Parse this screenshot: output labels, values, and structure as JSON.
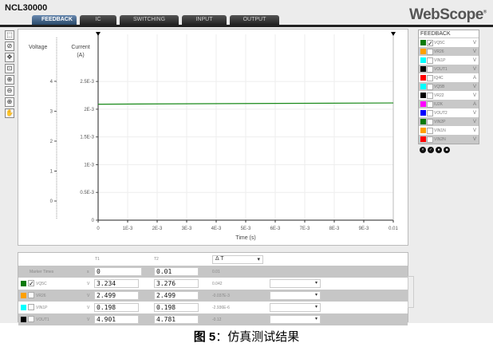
{
  "app": {
    "title": "NCL30000",
    "logo": "WebScope",
    "logo_mark": "®"
  },
  "tabs": [
    {
      "label": "FEEDBACK",
      "active": true
    },
    {
      "label": "IC"
    },
    {
      "label": "SWITCHING"
    },
    {
      "label": "INPUT"
    },
    {
      "label": "OUTPUT"
    }
  ],
  "tools": [
    "select-icon",
    "cursor-icon",
    "pan-icon",
    "measure-icon",
    "zoom-box-icon",
    "zoom-out-icon",
    "zoom-in-icon",
    "hand-icon"
  ],
  "chart_data": {
    "type": "line",
    "xlabel": "Time (s)",
    "x_ticks": [
      "0",
      "1E-3",
      "2E-3",
      "3E-3",
      "4E-3",
      "5E-3",
      "6E-3",
      "7E-3",
      "8E-3",
      "9E-3",
      "0.01"
    ],
    "xlim": [
      0,
      0.01
    ],
    "y_axes": [
      {
        "label": "Voltage",
        "ticks": [
          "0",
          "1",
          "2",
          "3",
          "4"
        ],
        "ylim": [
          -0.64,
          5.57
        ]
      },
      {
        "label": "Current",
        "unit": "(A)",
        "ticks": [
          "0",
          "0.5E-3",
          "1E-3",
          "1.5E-3",
          "2E-3",
          "2.5E-3"
        ],
        "ylim": [
          0,
          0.00335
        ]
      }
    ],
    "grid": true,
    "series": [
      {
        "name": "VQ5C",
        "axis": "Voltage",
        "color": "#1a8a1a",
        "x": [
          0,
          0.002,
          0.006,
          0.01
        ],
        "y": [
          3.234,
          3.245,
          3.262,
          3.276
        ]
      }
    ]
  },
  "signals": {
    "title": "FEEDBACK",
    "items": [
      {
        "name": "VQ5C",
        "color": "#0a7a0a",
        "checked": true,
        "unit": "V"
      },
      {
        "name": "VR26",
        "color": "#ffa000",
        "unit": "V"
      },
      {
        "name": "VIN1P",
        "color": "#00ffff",
        "unit": "V"
      },
      {
        "name": "VOUT1",
        "color": "#000000",
        "unit": "V"
      },
      {
        "name": "IQ4C",
        "color": "#ff0000",
        "unit": "A"
      },
      {
        "name": "VQ5B",
        "color": "#00ffff",
        "unit": "V"
      },
      {
        "name": "VR22",
        "color": "#000000",
        "unit": "V"
      },
      {
        "name": "IU2K",
        "color": "#ff00ff",
        "unit": "A"
      },
      {
        "name": "VOUT2",
        "color": "#0000ff",
        "unit": "V"
      },
      {
        "name": "VIN2P",
        "color": "#0a7a0a",
        "unit": "V"
      },
      {
        "name": "VIN1N",
        "color": "#ffa000",
        "unit": "V"
      },
      {
        "name": "VIN2N",
        "color": "#ff0000",
        "unit": "V"
      }
    ]
  },
  "table": {
    "t1": "T1",
    "t2": "T2",
    "delta_select": "Δ T",
    "marker": {
      "label": "Marker Times",
      "unit": "s",
      "t1": "0",
      "t2": "0.01",
      "delta": "0.01"
    },
    "rows": [
      {
        "name": "VQ5C",
        "color": "#0a7a0a",
        "checked": true,
        "unit": "V",
        "t1": "3.234",
        "t2": "3.276",
        "delta": "0.042"
      },
      {
        "name": "VR26",
        "color": "#ffa000",
        "unit": "V",
        "t1": "2.499",
        "t2": "2.499",
        "delta": "-0.037E-3"
      },
      {
        "name": "VIN1P",
        "color": "#00ffff",
        "unit": "V",
        "t1": "0.198",
        "t2": "0.198",
        "delta": "-2.936E-6"
      },
      {
        "name": "VOUT1",
        "color": "#000000",
        "unit": "V",
        "t1": "4.901",
        "t2": "4.781",
        "delta": "-0.12"
      }
    ]
  },
  "caption": {
    "fig": "图 5",
    "sep": "：",
    "text": "仿真测试结果"
  }
}
